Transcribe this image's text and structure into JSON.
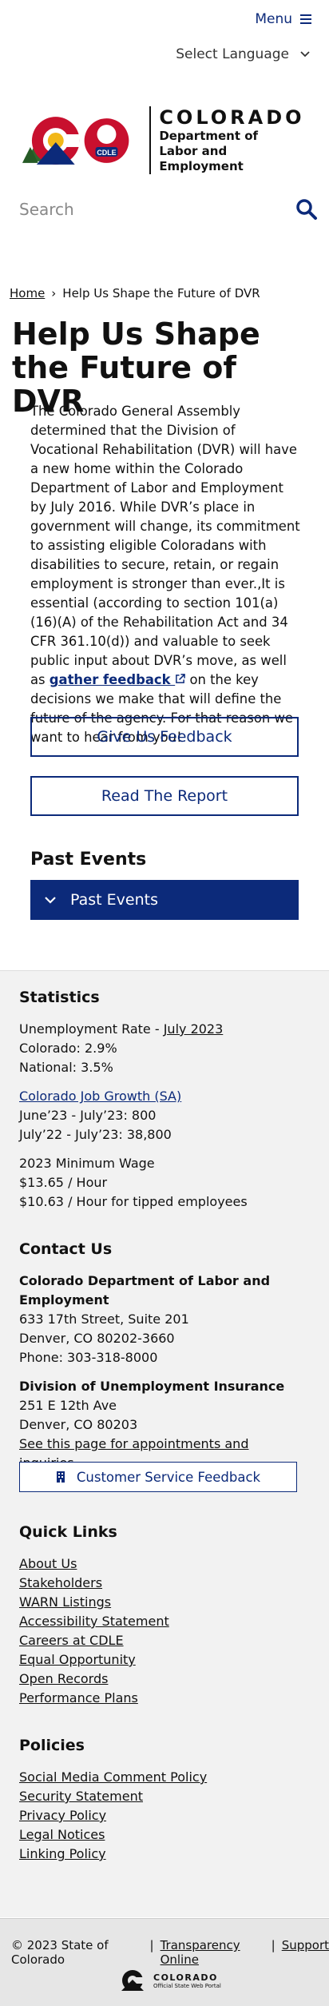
{
  "header": {
    "menu_label": "Menu",
    "language_label": "Select Language"
  },
  "logo": {
    "badge_text": "CDLE",
    "title": "COLORADO",
    "subtitle_line1": "Department of",
    "subtitle_line2": "Labor and Employment"
  },
  "search": {
    "placeholder": "Search"
  },
  "breadcrumb": {
    "home": "Home",
    "separator": "›",
    "current": "Help Us Shape the Future of DVR"
  },
  "page": {
    "title": "Help Us Shape the Future of DVR",
    "intro_before": "The Colorado General Assembly determined that the Division of Vocational Rehabilitation (DVR) will have a new home within the Colorado Department of Labor and Employment by July 2016. While DVR’s place in government will change, its commitment to assisting eligible Coloradans with disabilities to secure, retain, or regain employment is stronger than ever.,It is essential (according to section 101(a)(16)(A) of the Rehabilitation Act and 34 CFR 361.10(d)) and valuable to seek public input about DVR’s move, as well as ",
    "intro_link": "gather feedback",
    "intro_after": " on the key decisions we make that will define the future of the agency. For that reason we want to hear from you!",
    "feedback_button": "Give Us Feedback",
    "report_button": "Read The Report",
    "past_events_heading": "Past Events",
    "past_events_accordion": "Past Events"
  },
  "statistics": {
    "heading": "Statistics",
    "unemployment_label": "Unemployment Rate - ",
    "unemployment_month": "July 2023",
    "colorado_rate": "Colorado: 2.9%",
    "national_rate": "National: 3.5%",
    "job_growth_link": "Colorado Job Growth (SA)",
    "job_growth_1": "June’23 - July’23: 800",
    "job_growth_2": "July’22 - July’23: 38,800",
    "min_wage_label": "2023 Minimum Wage",
    "min_wage": "$13.65 / Hour",
    "min_wage_tipped": "$10.63 / Hour for tipped employees"
  },
  "contact": {
    "heading": "Contact Us",
    "org1_name": "Colorado Department of Labor and Employment",
    "org1_addr1": "633 17th Street, Suite 201",
    "org1_addr2": "Denver, CO  80202-3660",
    "org1_phone": "Phone: 303-318-8000",
    "org2_name": "Division of Unemployment Insurance",
    "org2_addr1": "251 E 12th Ave",
    "org2_addr2": "Denver, CO  80203",
    "org2_link": "See this page for appointments and inquiries",
    "feedback_button": "Customer Service Feedback"
  },
  "quick_links": {
    "heading": "Quick Links",
    "items": [
      "About Us",
      "Stakeholders",
      "WARN Listings",
      "Accessibility Statement",
      "Careers at CDLE",
      "Equal Opportunity",
      "Open Records",
      "Performance Plans"
    ]
  },
  "policies": {
    "heading": "Policies",
    "items": [
      "Social Media Comment Policy",
      "Security Statement",
      "Privacy Policy",
      "Legal Notices",
      "Linking Policy"
    ]
  },
  "footer": {
    "copyright": "© 2023 State of Colorado",
    "separator": "|",
    "transparency": "Transparency Online",
    "support": "Support",
    "logo_title": "COLORADO",
    "logo_sub": "Official State Web Portal"
  },
  "colors": {
    "brand_blue": "#0c2a7a",
    "logo_red": "#c8102e",
    "logo_gold": "#f2b718"
  }
}
